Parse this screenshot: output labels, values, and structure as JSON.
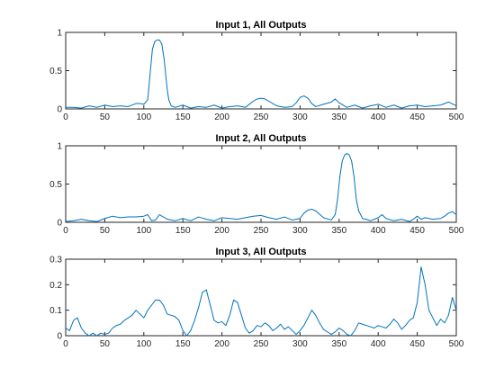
{
  "chart_data": [
    {
      "type": "line",
      "title": "Input 1, All Outputs",
      "xlim": [
        0,
        500
      ],
      "ylim": [
        0,
        1
      ],
      "xticks": [
        0,
        50,
        100,
        150,
        200,
        250,
        300,
        350,
        400,
        450,
        500
      ],
      "yticks": [
        0,
        0.5,
        1
      ],
      "xtick_labels": [
        "0",
        "50",
        "100",
        "150",
        "200",
        "250",
        "300",
        "350",
        "400",
        "450",
        "500"
      ],
      "ytick_labels": [
        "0",
        "0.5",
        "1"
      ],
      "grid": false,
      "series": [
        {
          "color": "#0072bd",
          "x": [
            0,
            10,
            20,
            30,
            40,
            50,
            60,
            70,
            80,
            90,
            95,
            100,
            105,
            108,
            111,
            114,
            117,
            120,
            123,
            126,
            128,
            130,
            132,
            135,
            140,
            150,
            160,
            170,
            180,
            190,
            200,
            210,
            220,
            230,
            240,
            245,
            250,
            255,
            260,
            270,
            280,
            290,
            295,
            300,
            305,
            310,
            315,
            320,
            330,
            340,
            345,
            350,
            360,
            370,
            380,
            390,
            400,
            410,
            420,
            430,
            440,
            450,
            460,
            470,
            480,
            490,
            500
          ],
          "y": [
            0.02,
            0.02,
            0.01,
            0.04,
            0.02,
            0.05,
            0.03,
            0.04,
            0.03,
            0.07,
            0.07,
            0.06,
            0.12,
            0.45,
            0.78,
            0.88,
            0.9,
            0.9,
            0.85,
            0.65,
            0.45,
            0.25,
            0.12,
            0.04,
            0.02,
            0.05,
            0.01,
            0.03,
            0.02,
            0.05,
            0.01,
            0.03,
            0.04,
            0.02,
            0.1,
            0.13,
            0.14,
            0.13,
            0.1,
            0.04,
            0.02,
            0.03,
            0.08,
            0.15,
            0.17,
            0.14,
            0.07,
            0.03,
            0.06,
            0.09,
            0.13,
            0.08,
            0.02,
            0.05,
            0.01,
            0.04,
            0.06,
            0.02,
            0.05,
            0.01,
            0.04,
            0.05,
            0.03,
            0.04,
            0.05,
            0.09,
            0.04
          ]
        }
      ]
    },
    {
      "type": "line",
      "title": "Input 2, All Outputs",
      "xlim": [
        0,
        500
      ],
      "ylim": [
        0,
        1
      ],
      "xticks": [
        0,
        50,
        100,
        150,
        200,
        250,
        300,
        350,
        400,
        450,
        500
      ],
      "yticks": [
        0,
        0.5,
        1
      ],
      "xtick_labels": [
        "0",
        "50",
        "100",
        "150",
        "200",
        "250",
        "300",
        "350",
        "400",
        "450",
        "500"
      ],
      "ytick_labels": [
        "0",
        "0.5",
        "1"
      ],
      "grid": false,
      "series": [
        {
          "color": "#0072bd",
          "x": [
            0,
            10,
            20,
            30,
            40,
            50,
            60,
            70,
            80,
            90,
            100,
            105,
            110,
            115,
            120,
            130,
            140,
            150,
            160,
            170,
            180,
            190,
            200,
            210,
            220,
            230,
            240,
            250,
            260,
            270,
            280,
            290,
            300,
            305,
            310,
            315,
            320,
            330,
            340,
            345,
            348,
            351,
            354,
            357,
            360,
            363,
            366,
            369,
            372,
            375,
            380,
            385,
            390,
            395,
            400,
            405,
            410,
            420,
            430,
            440,
            445,
            450,
            455,
            460,
            470,
            480,
            485,
            490,
            495,
            500
          ],
          "y": [
            0.01,
            0.02,
            0.04,
            0.02,
            0.01,
            0.05,
            0.08,
            0.06,
            0.07,
            0.07,
            0.08,
            0.1,
            0.02,
            0.03,
            0.1,
            0.04,
            0.02,
            0.05,
            0.02,
            0.07,
            0.04,
            0.02,
            0.06,
            0.05,
            0.04,
            0.06,
            0.08,
            0.09,
            0.06,
            0.04,
            0.07,
            0.03,
            0.05,
            0.12,
            0.16,
            0.17,
            0.15,
            0.06,
            0.03,
            0.1,
            0.3,
            0.6,
            0.8,
            0.88,
            0.9,
            0.88,
            0.8,
            0.6,
            0.3,
            0.15,
            0.05,
            0.04,
            0.02,
            0.04,
            0.06,
            0.1,
            0.05,
            0.02,
            0.04,
            0.01,
            0.04,
            0.08,
            0.04,
            0.06,
            0.04,
            0.05,
            0.08,
            0.12,
            0.14,
            0.1
          ]
        }
      ]
    },
    {
      "type": "line",
      "title": "Input 3, All Outputs",
      "xlim": [
        0,
        500
      ],
      "ylim": [
        0,
        0.3
      ],
      "xticks": [
        0,
        50,
        100,
        150,
        200,
        250,
        300,
        350,
        400,
        450,
        500
      ],
      "yticks": [
        0,
        0.1,
        0.2,
        0.3
      ],
      "xtick_labels": [
        "0",
        "50",
        "100",
        "150",
        "200",
        "250",
        "300",
        "350",
        "400",
        "450",
        "500"
      ],
      "ytick_labels": [
        "0",
        "0.1",
        "0.2",
        "0.3"
      ],
      "grid": false,
      "series": [
        {
          "color": "#0072bd",
          "x": [
            0,
            5,
            10,
            15,
            20,
            25,
            30,
            35,
            40,
            45,
            50,
            55,
            60,
            65,
            70,
            75,
            80,
            85,
            90,
            95,
            100,
            105,
            110,
            115,
            120,
            125,
            130,
            135,
            140,
            145,
            150,
            155,
            160,
            165,
            170,
            175,
            180,
            185,
            190,
            195,
            200,
            205,
            210,
            215,
            220,
            225,
            230,
            235,
            240,
            245,
            250,
            255,
            260,
            265,
            270,
            275,
            280,
            285,
            290,
            295,
            300,
            305,
            310,
            315,
            320,
            325,
            330,
            335,
            340,
            345,
            350,
            355,
            360,
            365,
            370,
            375,
            380,
            385,
            390,
            395,
            400,
            405,
            410,
            415,
            420,
            425,
            430,
            435,
            440,
            445,
            450,
            455,
            460,
            465,
            470,
            475,
            480,
            485,
            490,
            495,
            500
          ],
          "y": [
            0.03,
            0.02,
            0.06,
            0.07,
            0.03,
            0.01,
            0.0,
            0.01,
            0.0,
            0.01,
            0.005,
            0.01,
            0.03,
            0.04,
            0.045,
            0.06,
            0.07,
            0.08,
            0.1,
            0.085,
            0.07,
            0.1,
            0.12,
            0.14,
            0.14,
            0.12,
            0.085,
            0.08,
            0.075,
            0.06,
            0.02,
            0.0,
            0.02,
            0.06,
            0.11,
            0.17,
            0.18,
            0.12,
            0.06,
            0.05,
            0.055,
            0.04,
            0.08,
            0.14,
            0.13,
            0.08,
            0.03,
            0.01,
            0.02,
            0.04,
            0.035,
            0.05,
            0.04,
            0.02,
            0.03,
            0.045,
            0.025,
            0.035,
            0.02,
            0.005,
            0.02,
            0.04,
            0.07,
            0.1,
            0.08,
            0.05,
            0.025,
            0.015,
            0.005,
            0.015,
            0.03,
            0.02,
            0.005,
            0.0,
            0.02,
            0.05,
            0.045,
            0.04,
            0.035,
            0.03,
            0.04,
            0.035,
            0.03,
            0.045,
            0.065,
            0.05,
            0.025,
            0.04,
            0.06,
            0.07,
            0.13,
            0.27,
            0.2,
            0.1,
            0.07,
            0.04,
            0.065,
            0.05,
            0.08,
            0.15,
            0.1
          ]
        }
      ]
    }
  ]
}
